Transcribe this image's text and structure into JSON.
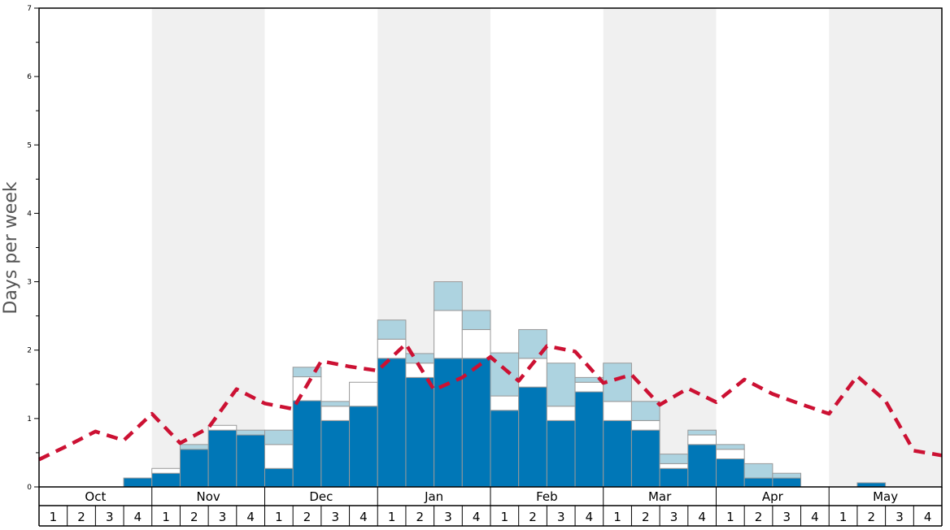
{
  "chart_data": {
    "type": "bar",
    "title": "",
    "xlabel": "",
    "ylabel": "Days per week",
    "ylim": [
      0,
      7
    ],
    "yticks": [
      "0",
      "1",
      "2",
      "3",
      "4",
      "5",
      "6",
      "7"
    ],
    "months": [
      "Oct",
      "Nov",
      "Dec",
      "Jan",
      "Feb",
      "Mar",
      "Apr",
      "May"
    ],
    "week_labels": [
      "1",
      "2",
      "3",
      "4"
    ],
    "colors": {
      "series1": "#0077b7",
      "series2": "#ffffff",
      "series3": "#add3e0",
      "line": "#cc1133",
      "band": "#f0f0f0"
    },
    "stacked": true,
    "series": [
      {
        "values": [
          0,
          0,
          0,
          0.13,
          0.2,
          0.55,
          0.83,
          0.76,
          0.27,
          1.26,
          0.97,
          1.18,
          1.88,
          1.6,
          1.88,
          1.88,
          1.12,
          1.46,
          0.97,
          1.39,
          0.97,
          0.83,
          0.27,
          0.62,
          0.41,
          0.13,
          0.13,
          0,
          0,
          0.06,
          0,
          0
        ]
      },
      {
        "values": [
          0,
          0,
          0,
          0,
          0.07,
          0,
          0.07,
          0,
          0.35,
          0.35,
          0.21,
          0.35,
          0.28,
          0.21,
          0.7,
          0.42,
          0.21,
          0.42,
          0.21,
          0.14,
          0.28,
          0.14,
          0.07,
          0.14,
          0.14,
          0,
          0,
          0,
          0,
          0,
          0,
          0
        ]
      },
      {
        "values": [
          0,
          0,
          0,
          0,
          0,
          0.07,
          0,
          0.07,
          0.21,
          0.14,
          0.07,
          0,
          0.28,
          0.14,
          0.42,
          0.28,
          0.63,
          0.42,
          0.63,
          0.07,
          0.56,
          0.28,
          0.14,
          0.07,
          0.07,
          0.21,
          0.07,
          0,
          0,
          0,
          0,
          0
        ]
      },
      {
        "type": "line",
        "values": [
          0.4,
          0.6,
          0.81,
          0.68,
          1.07,
          0.64,
          0.86,
          1.43,
          1.22,
          1.14,
          1.84,
          1.76,
          1.7,
          2.09,
          1.42,
          1.6,
          1.9,
          1.55,
          2.06,
          1.98,
          1.52,
          1.64,
          1.2,
          1.44,
          1.24,
          1.57,
          1.36,
          1.21,
          1.07,
          1.62,
          1.26,
          0.53,
          0.46
        ]
      }
    ]
  }
}
